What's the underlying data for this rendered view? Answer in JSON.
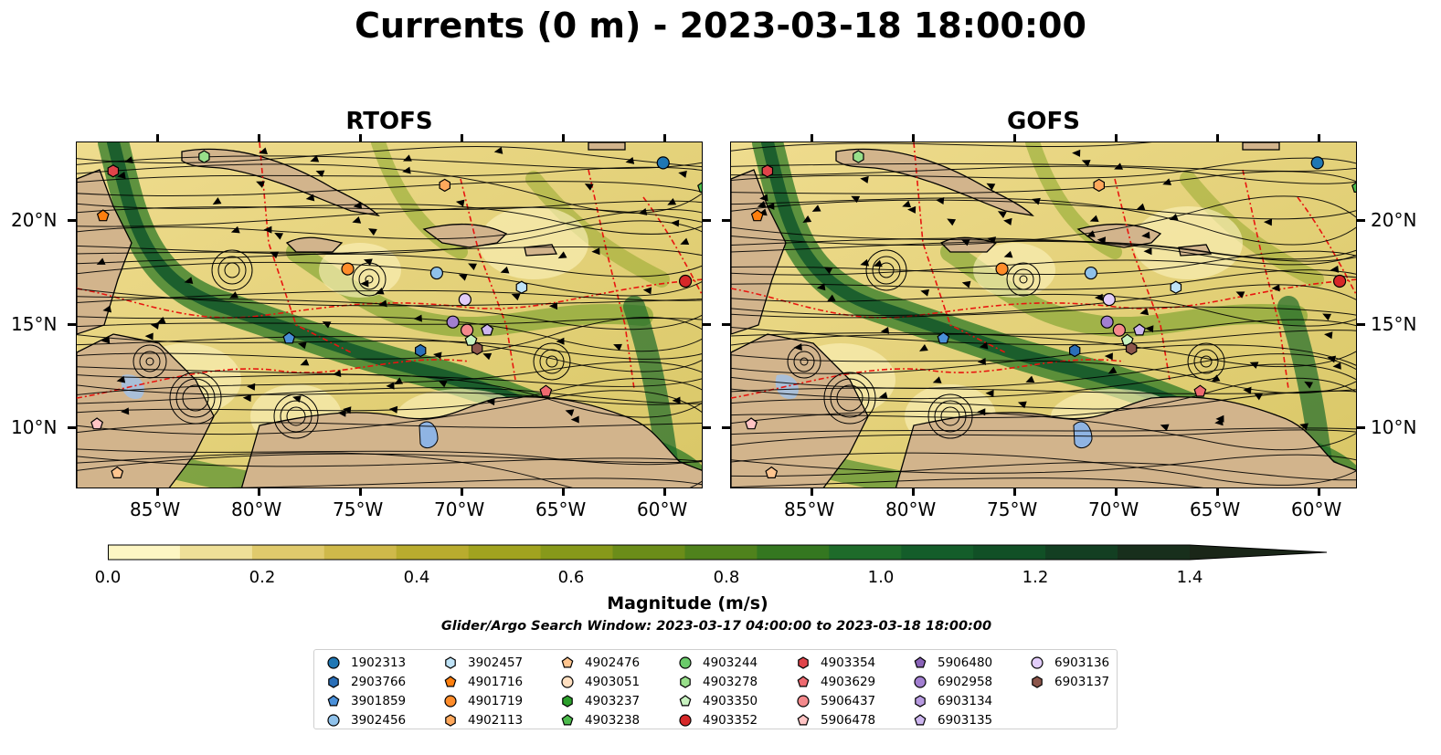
{
  "title": "Currents (0 m) - 2023-03-18 18:00:00",
  "panels": [
    {
      "title": "RTOFS"
    },
    {
      "title": "GOFS"
    }
  ],
  "lat_ticks": [
    "20°N",
    "15°N",
    "10°N"
  ],
  "lon_ticks": [
    "85°W",
    "80°W",
    "75°W",
    "70°W",
    "65°W",
    "60°W"
  ],
  "map_extent": {
    "lon": [
      -89,
      -58
    ],
    "lat": [
      7,
      24
    ]
  },
  "colorbar": {
    "label": "Magnitude (m/s)",
    "tick_labels": [
      "0.0",
      "0.2",
      "0.4",
      "0.6",
      "0.8",
      "1.0",
      "1.2",
      "1.4"
    ],
    "range": [
      0,
      1.5
    ],
    "extend": "max",
    "colors": [
      "#fdf6c3",
      "#efe098",
      "#e0ca6c",
      "#cfb94a",
      "#b9ac2e",
      "#a1a31f",
      "#87991a",
      "#6b8d19",
      "#4f821c",
      "#347720",
      "#1e6b2a",
      "#145d2a",
      "#115026",
      "#133f22",
      "#182f1c",
      "#1a2618"
    ]
  },
  "search_window": "Glider/Argo Search Window: 2023-03-17 04:00:00 to 2023-03-18 18:00:00",
  "legend": [
    {
      "label": "1902313",
      "marker": "circle",
      "color": "#1f77b4"
    },
    {
      "label": "2903766",
      "marker": "hexagon",
      "color": "#2a6fb8"
    },
    {
      "label": "3901859",
      "marker": "pentagon",
      "color": "#4a90d9"
    },
    {
      "label": "3902456",
      "marker": "circle",
      "color": "#8fc1ea"
    },
    {
      "label": "3902457",
      "marker": "hexagon",
      "color": "#bfe3f7"
    },
    {
      "label": "4901716",
      "marker": "pentagon",
      "color": "#ff7f0e"
    },
    {
      "label": "4901719",
      "marker": "circle",
      "color": "#ff8c2a"
    },
    {
      "label": "4902113",
      "marker": "hexagon",
      "color": "#ffa85c"
    },
    {
      "label": "4902476",
      "marker": "pentagon",
      "color": "#ffc58f"
    },
    {
      "label": "4903051",
      "marker": "circle",
      "color": "#ffdfc0"
    },
    {
      "label": "4903237",
      "marker": "hexagon",
      "color": "#2ca02c"
    },
    {
      "label": "4903238",
      "marker": "pentagon",
      "color": "#4cbb4c"
    },
    {
      "label": "4903244",
      "marker": "circle",
      "color": "#6acb6a"
    },
    {
      "label": "4903278",
      "marker": "hexagon",
      "color": "#98df8a"
    },
    {
      "label": "4903350",
      "marker": "pentagon",
      "color": "#c8f2c0"
    },
    {
      "label": "4903352",
      "marker": "circle",
      "color": "#d62728"
    },
    {
      "label": "4903354",
      "marker": "hexagon",
      "color": "#e0444a"
    },
    {
      "label": "4903629",
      "marker": "pentagon",
      "color": "#ee6a70"
    },
    {
      "label": "5906437",
      "marker": "circle",
      "color": "#f4898c"
    },
    {
      "label": "5906478",
      "marker": "pentagon",
      "color": "#ffc4c4"
    },
    {
      "label": "5906480",
      "marker": "pentagon",
      "color": "#8a63b8"
    },
    {
      "label": "6902958",
      "marker": "circle",
      "color": "#a27fd0"
    },
    {
      "label": "6903134",
      "marker": "hexagon",
      "color": "#b79ae0"
    },
    {
      "label": "6903135",
      "marker": "pentagon",
      "color": "#cdb6ef"
    },
    {
      "label": "6903136",
      "marker": "circle",
      "color": "#e2cdfa"
    },
    {
      "label": "6903137",
      "marker": "hexagon",
      "color": "#8c564b"
    }
  ]
}
